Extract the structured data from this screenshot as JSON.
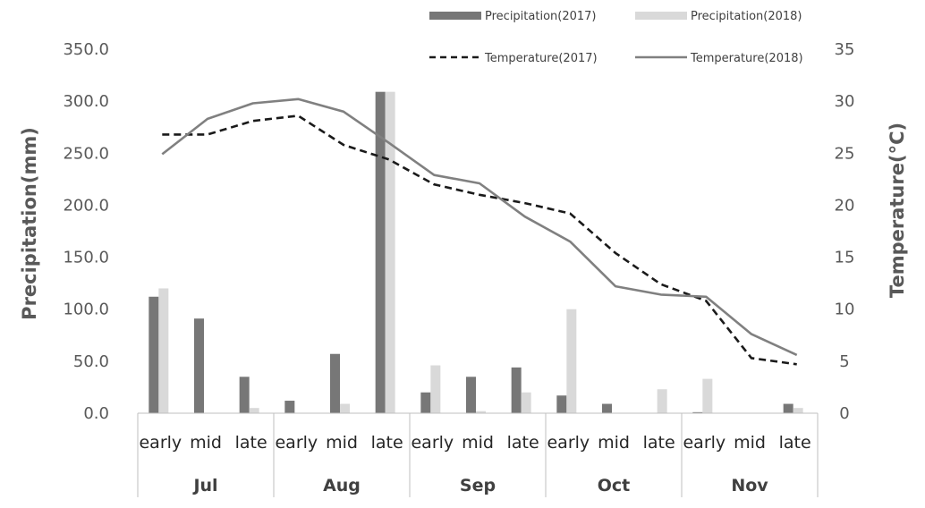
{
  "chart_data": {
    "type": "bar+line",
    "categories": [
      "early",
      "mid",
      "late",
      "early",
      "mid",
      "late",
      "early",
      "mid",
      "late",
      "early",
      "mid",
      "late",
      "early",
      "mid",
      "late"
    ],
    "months": [
      "Jul",
      "Aug",
      "Sep",
      "Oct",
      "Nov"
    ],
    "series": [
      {
        "name": "Precipitation(2017)",
        "type": "bar",
        "axis": "left",
        "color": "#777777",
        "values": [
          112,
          91,
          35,
          12,
          57,
          309,
          20,
          35,
          44,
          17,
          9,
          0,
          1,
          0,
          9
        ]
      },
      {
        "name": "Precipitation(2018)",
        "type": "bar",
        "axis": "left",
        "color": "#d9d9d9",
        "values": [
          120,
          0,
          5,
          0,
          9,
          309,
          46,
          2,
          20,
          100,
          0,
          23,
          33,
          0,
          5
        ]
      },
      {
        "name": "Temperature(2017)",
        "type": "line",
        "axis": "right",
        "style": "dashed",
        "color": "#1a1a1a",
        "values": [
          26.8,
          26.8,
          28.1,
          28.6,
          25.8,
          24.4,
          22.0,
          21.0,
          20.2,
          19.2,
          15.4,
          12.4,
          10.8,
          5.3,
          4.7
        ]
      },
      {
        "name": "Temperature(2018)",
        "type": "line",
        "axis": "right",
        "style": "solid",
        "color": "#808080",
        "values": [
          24.9,
          28.3,
          29.8,
          30.2,
          29.0,
          26.0,
          22.9,
          22.1,
          18.9,
          16.5,
          12.2,
          11.4,
          11.2,
          7.6,
          5.6
        ]
      }
    ],
    "ylabel": "Precipitation(mm)",
    "y2label": "Temperature(°C)",
    "ylim": [
      0,
      350
    ],
    "y2lim": [
      0,
      35
    ],
    "yticks": [
      "0.0",
      "50.0",
      "100.0",
      "150.0",
      "200.0",
      "250.0",
      "300.0",
      "350.0"
    ],
    "y2ticks": [
      "0",
      "5",
      "10",
      "15",
      "20",
      "25",
      "30",
      "35"
    ],
    "grid": false,
    "legend_position": "top-right"
  }
}
